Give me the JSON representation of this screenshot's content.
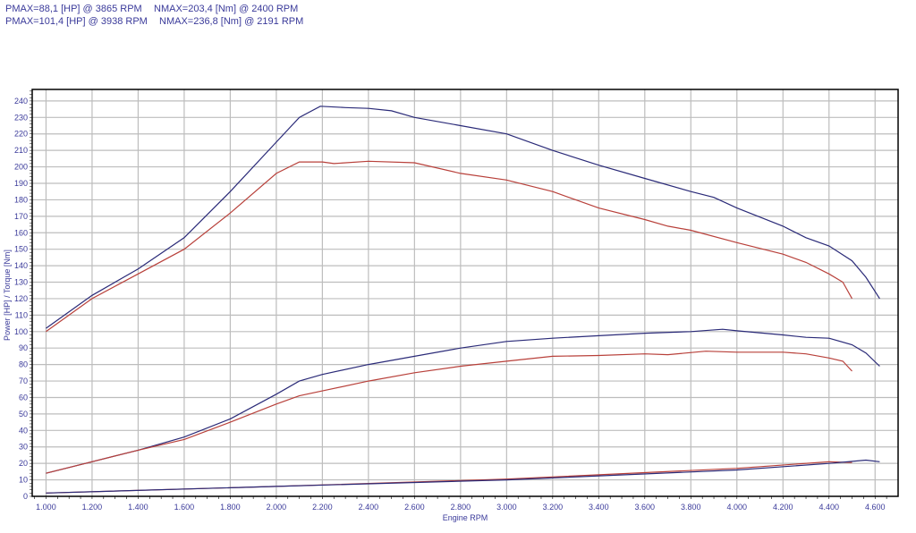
{
  "header": {
    "line1_pmax": "PMAX=88,1 [HP] @ 3865 RPM",
    "line1_nmax": "NMAX=203,4 [Nm] @ 2400 RPM",
    "line2_pmax": "PMAX=101,4 [HP] @ 3938 RPM",
    "line2_nmax": "NMAX=236,8 [Nm] @ 2191 RPM"
  },
  "chart_data": {
    "type": "line",
    "xlabel": "Engine RPM",
    "ylabel": "Power [HP] / Torque [Nm]",
    "xlim": [
      940,
      4700
    ],
    "ylim": [
      0,
      247
    ],
    "grid": true,
    "x_ticks": [
      1000,
      1200,
      1400,
      1600,
      1800,
      2000,
      2200,
      2400,
      2600,
      2800,
      3000,
      3200,
      3400,
      3600,
      3800,
      4000,
      4200,
      4400,
      4600
    ],
    "x_tick_labels": [
      "1.000",
      "1.200",
      "1.400",
      "1.600",
      "1.800",
      "2.000",
      "2.200",
      "2.400",
      "2.600",
      "2.800",
      "3.000",
      "3.200",
      "3.400",
      "3.600",
      "3.800",
      "4.000",
      "4.200",
      "4.400",
      "4.600"
    ],
    "y_ticks": [
      0,
      10,
      20,
      30,
      40,
      50,
      60,
      70,
      80,
      90,
      100,
      110,
      120,
      130,
      140,
      150,
      160,
      170,
      180,
      190,
      200,
      210,
      220,
      230,
      240
    ],
    "colors": {
      "blue": "#2a2a78",
      "red": "#b8403a",
      "purple": "#7a2a70"
    },
    "series": [
      {
        "color": "blue",
        "points": [
          [
            1000,
            102
          ],
          [
            1200,
            122
          ],
          [
            1400,
            138
          ],
          [
            1600,
            157
          ],
          [
            1800,
            185
          ],
          [
            2000,
            215
          ],
          [
            2100,
            230
          ],
          [
            2191,
            236.8
          ],
          [
            2300,
            236
          ],
          [
            2400,
            235.5
          ],
          [
            2500,
            234
          ],
          [
            2600,
            230
          ],
          [
            2800,
            225
          ],
          [
            3000,
            220
          ],
          [
            3200,
            210
          ],
          [
            3400,
            201
          ],
          [
            3600,
            193
          ],
          [
            3800,
            185
          ],
          [
            3900,
            181.5
          ],
          [
            4000,
            175
          ],
          [
            4200,
            164
          ],
          [
            4300,
            157
          ],
          [
            4400,
            152
          ],
          [
            4500,
            143
          ],
          [
            4560,
            133
          ],
          [
            4620,
            120
          ]
        ]
      },
      {
        "color": "red",
        "points": [
          [
            1000,
            100
          ],
          [
            1200,
            120
          ],
          [
            1400,
            135
          ],
          [
            1600,
            150
          ],
          [
            1800,
            172
          ],
          [
            2000,
            196
          ],
          [
            2100,
            203
          ],
          [
            2200,
            203
          ],
          [
            2250,
            202
          ],
          [
            2400,
            203.4
          ],
          [
            2600,
            202.5
          ],
          [
            2800,
            196
          ],
          [
            3000,
            192
          ],
          [
            3200,
            185
          ],
          [
            3400,
            175
          ],
          [
            3600,
            168
          ],
          [
            3700,
            164
          ],
          [
            3800,
            161.5
          ],
          [
            4000,
            154
          ],
          [
            4200,
            147
          ],
          [
            4300,
            142
          ],
          [
            4400,
            135
          ],
          [
            4460,
            130
          ],
          [
            4500,
            120
          ]
        ]
      },
      {
        "color": "blue",
        "points": [
          [
            1000,
            14
          ],
          [
            1200,
            21
          ],
          [
            1400,
            28
          ],
          [
            1600,
            36
          ],
          [
            1800,
            47
          ],
          [
            2000,
            62
          ],
          [
            2100,
            70
          ],
          [
            2200,
            74
          ],
          [
            2400,
            80
          ],
          [
            2600,
            85
          ],
          [
            2800,
            90
          ],
          [
            3000,
            94
          ],
          [
            3200,
            96
          ],
          [
            3400,
            97.5
          ],
          [
            3600,
            99
          ],
          [
            3800,
            100
          ],
          [
            3938,
            101.4
          ],
          [
            4000,
            100.5
          ],
          [
            4200,
            98
          ],
          [
            4300,
            96.5
          ],
          [
            4400,
            96
          ],
          [
            4500,
            92
          ],
          [
            4560,
            87
          ],
          [
            4620,
            79
          ]
        ]
      },
      {
        "color": "red",
        "points": [
          [
            1000,
            14
          ],
          [
            1200,
            21
          ],
          [
            1400,
            28
          ],
          [
            1600,
            34.5
          ],
          [
            1800,
            45
          ],
          [
            2000,
            56
          ],
          [
            2100,
            61
          ],
          [
            2200,
            64
          ],
          [
            2400,
            70
          ],
          [
            2600,
            75
          ],
          [
            2800,
            79
          ],
          [
            3000,
            82
          ],
          [
            3200,
            85
          ],
          [
            3400,
            85.5
          ],
          [
            3600,
            86.5
          ],
          [
            3700,
            86
          ],
          [
            3865,
            88.1
          ],
          [
            4000,
            87.5
          ],
          [
            4200,
            87.5
          ],
          [
            4300,
            86.5
          ],
          [
            4400,
            84
          ],
          [
            4460,
            82
          ],
          [
            4500,
            76
          ]
        ]
      },
      {
        "color": "red",
        "points": [
          [
            1000,
            2
          ],
          [
            2000,
            6
          ],
          [
            3000,
            10.5
          ],
          [
            4000,
            17
          ],
          [
            4400,
            21
          ],
          [
            4500,
            20.5
          ]
        ]
      },
      {
        "color": "blue",
        "points": [
          [
            1000,
            2
          ],
          [
            2000,
            6
          ],
          [
            3000,
            10
          ],
          [
            4000,
            16
          ],
          [
            4400,
            20
          ],
          [
            4560,
            22
          ],
          [
            4620,
            21
          ]
        ]
      }
    ]
  }
}
